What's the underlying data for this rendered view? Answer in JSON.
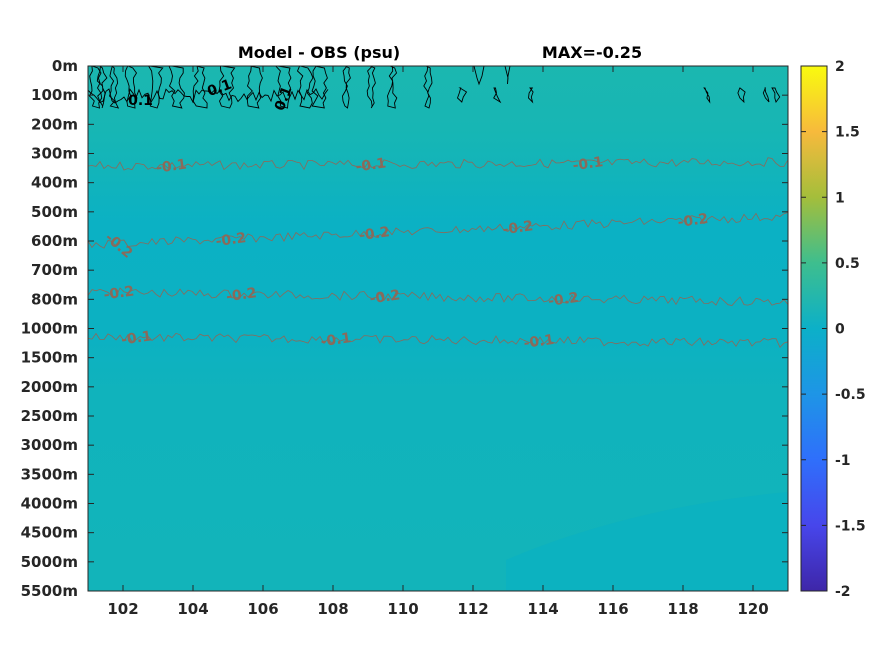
{
  "chart_data": {
    "type": "heatmap",
    "title": "Model - OBS (psu)",
    "subtitle": "MAX=-0.25",
    "x_ticks": [
      102,
      104,
      106,
      108,
      110,
      112,
      114,
      116,
      118,
      120
    ],
    "xlim": [
      101,
      121
    ],
    "y_tick_labels": [
      "0m",
      "100m",
      "200m",
      "300m",
      "400m",
      "500m",
      "600m",
      "700m",
      "800m",
      "1000m",
      "1500m",
      "2000m",
      "2500m",
      "3000m",
      "3500m",
      "4000m",
      "4500m",
      "5000m",
      "5500m"
    ],
    "y_axis": "depth (nonlinear index scale, top to bottom)",
    "colorbar": {
      "ticks": [
        "2",
        "1.5",
        "1",
        "0.5",
        "0",
        "-0.5",
        "-1",
        "-1.5",
        "-2"
      ],
      "range": [
        -2,
        2
      ],
      "colormap": "parula"
    },
    "field_description": "salinity difference, mostly between -0.25 and 0.1 psu",
    "contours": [
      {
        "level": 0.1,
        "color": "#000000",
        "depth_band": "0m-100m",
        "labels": [
          {
            "x": 102.5,
            "text": "0.1"
          },
          {
            "x": 104.8,
            "text": "0.1"
          },
          {
            "x": 106.7,
            "text": "0.1"
          }
        ]
      },
      {
        "level": -0.1,
        "color": "#8a6a5a",
        "depth_band": "~350m",
        "labels": [
          {
            "x": 103.4,
            "text": "-0.1"
          },
          {
            "x": 109.1,
            "text": "-0.1"
          },
          {
            "x": 115.3,
            "text": "-0.1"
          }
        ]
      },
      {
        "level": -0.2,
        "color": "#8a6a5a",
        "depth_band": "~550-600m",
        "labels": [
          {
            "x": 101.8,
            "text": "-0.2"
          },
          {
            "x": 105.1,
            "text": "-0.2"
          },
          {
            "x": 109.2,
            "text": "-0.2"
          },
          {
            "x": 113.3,
            "text": "-0.2"
          },
          {
            "x": 118.3,
            "text": "-0.2"
          }
        ]
      },
      {
        "level": -0.2,
        "color": "#8a6a5a",
        "depth_band": "~790m",
        "labels": [
          {
            "x": 101.9,
            "text": "-0.2"
          },
          {
            "x": 105.4,
            "text": "-0.2"
          },
          {
            "x": 109.5,
            "text": "-0.2"
          },
          {
            "x": 114.6,
            "text": "-0.2"
          }
        ]
      },
      {
        "level": -0.1,
        "color": "#8a6a5a",
        "depth_band": "~1100m",
        "labels": [
          {
            "x": 102.4,
            "text": "-0.1"
          },
          {
            "x": 108.1,
            "text": "-0.1"
          },
          {
            "x": 113.9,
            "text": "-0.1"
          }
        ]
      }
    ],
    "colors": {
      "bg_main": "#10b3bc",
      "bg_upper": "#19b6b2",
      "bg_band_mid": "#0bb1c4",
      "bg_deep_patch": "#0cb2c1",
      "contour_pos": "#000000",
      "contour_neg": "#8a6a5a"
    }
  }
}
